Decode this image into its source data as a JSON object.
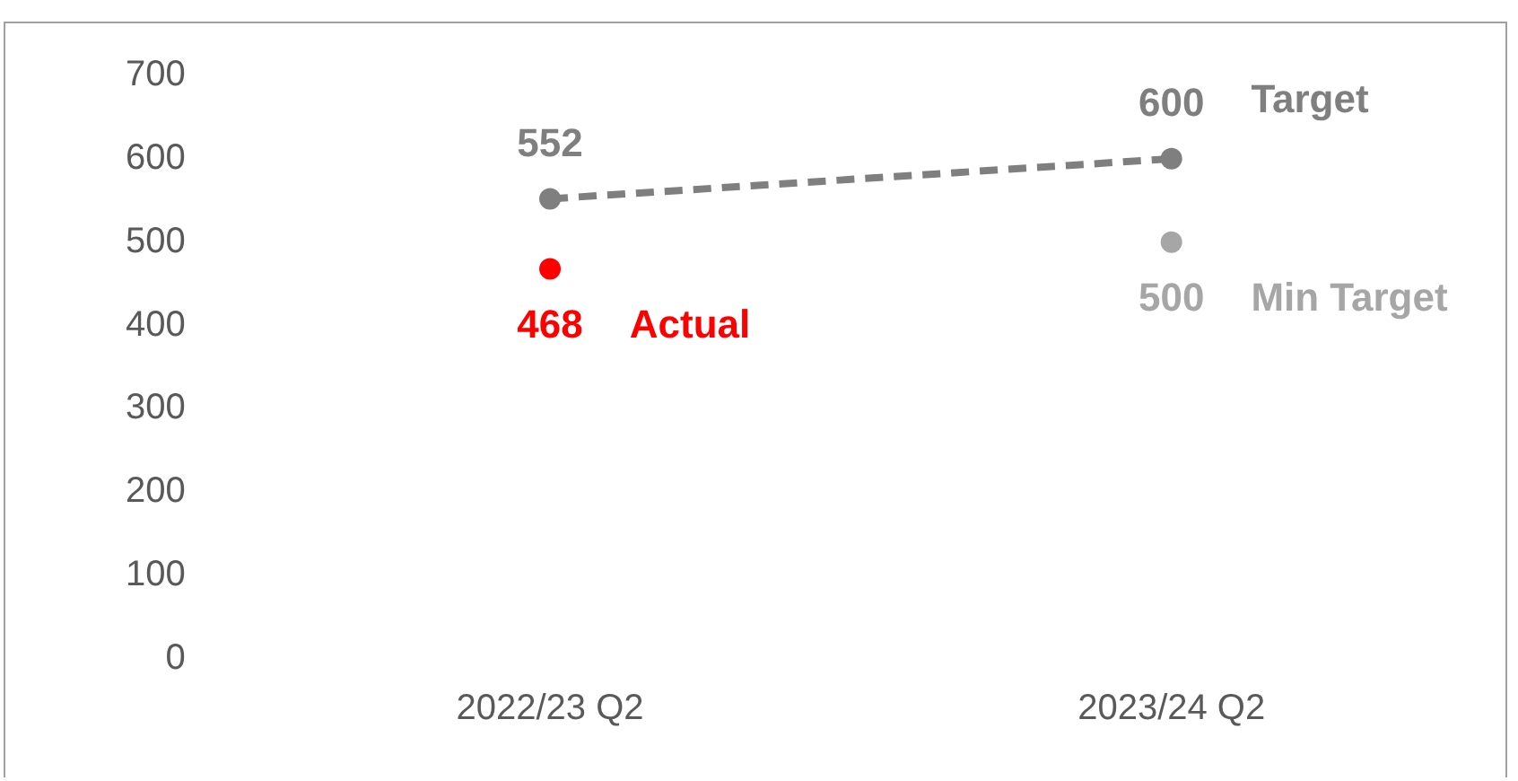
{
  "chart_data": {
    "type": "line",
    "categories": [
      "2022/23 Q2",
      "2023/24 Q2"
    ],
    "series": [
      {
        "name": "Target",
        "color": "#7f7f7f",
        "values": [
          552,
          600
        ],
        "line_style": "dashed",
        "marker": "circle"
      },
      {
        "name": "Actual",
        "type": "scatter",
        "color": "#ff0000",
        "values": [
          468,
          null
        ],
        "marker": "circle"
      },
      {
        "name": "Min Target",
        "type": "scatter",
        "color": "#a6a6a6",
        "values": [
          null,
          500
        ],
        "marker": "circle"
      }
    ],
    "ylim": [
      0,
      700
    ],
    "yticks": [
      0,
      100,
      200,
      300,
      400,
      500,
      600,
      700
    ],
    "grid": false,
    "legend": false,
    "data_labels": true
  }
}
